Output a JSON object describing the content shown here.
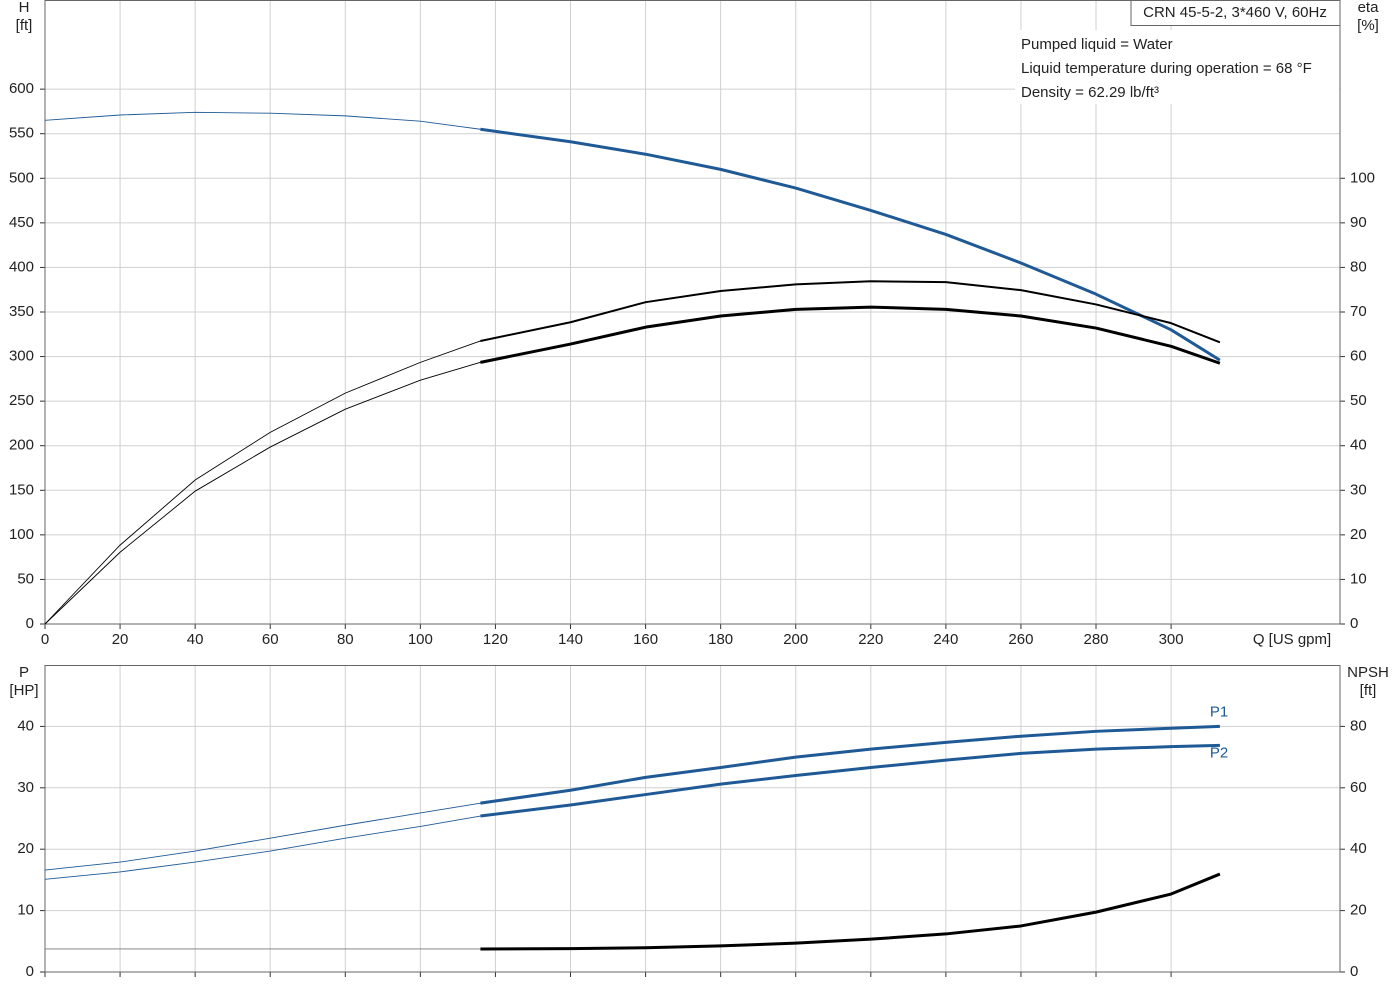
{
  "chart_data": [
    {
      "type": "line",
      "title": "CRN 45-5-2, 3*460 V, 60Hz",
      "annotations": [
        "Pumped liquid = Water",
        "Liquid temperature during operation = 68 °F",
        "Density = 62.29 lb/ft³"
      ],
      "y_label": [
        "H",
        "[ft]"
      ],
      "y2_label": [
        "eta",
        "[%]"
      ],
      "x_label": "Q [US gpm]",
      "x": [
        0,
        20,
        40,
        60,
        80,
        100,
        116,
        140,
        160,
        180,
        200,
        220,
        240,
        260,
        280,
        300,
        313
      ],
      "operating_range": [
        116,
        313
      ],
      "xlim": [
        0,
        345
      ],
      "xticks": [
        0,
        20,
        40,
        60,
        80,
        100,
        120,
        140,
        160,
        180,
        200,
        220,
        240,
        260,
        280,
        300
      ],
      "ylim": [
        0,
        700
      ],
      "yticks": [
        0,
        50,
        100,
        150,
        200,
        250,
        300,
        350,
        400,
        450,
        500,
        550,
        600
      ],
      "y2lim": [
        0,
        140
      ],
      "y2ticks": [
        0,
        10,
        20,
        30,
        40,
        50,
        60,
        70,
        80,
        90,
        100
      ],
      "grid": true,
      "series": [
        {
          "color": "#1f5a96",
          "values": [
            565,
            571,
            574,
            573,
            570,
            564,
            555,
            541,
            527,
            510,
            489,
            464,
            437,
            405,
            370,
            330,
            296
          ]
        },
        {
          "color": "#000000",
          "axis": "y2",
          "values": [
            0,
            17.7,
            32.3,
            43,
            51.8,
            58.7,
            63.5,
            67.7,
            72.2,
            74.7,
            76.2,
            76.9,
            76.7,
            74.9,
            71.7,
            67.5,
            63.2
          ]
        },
        {
          "color": "#000000",
          "axis": "y2",
          "values": [
            0,
            16.1,
            29.8,
            39.7,
            48.2,
            54.7,
            58.7,
            62.8,
            66.6,
            69.1,
            70.6,
            71.1,
            70.6,
            69.1,
            66.4,
            62.3,
            58.5
          ]
        }
      ]
    },
    {
      "type": "line",
      "y_label": [
        "P",
        "[HP]"
      ],
      "y2_label": [
        "NPSH",
        "[ft]"
      ],
      "x": [
        0,
        20,
        40,
        60,
        80,
        100,
        116,
        140,
        160,
        180,
        200,
        220,
        240,
        260,
        280,
        300,
        313
      ],
      "operating_range": [
        116,
        313
      ],
      "xlim": [
        0,
        345
      ],
      "ylim": [
        0,
        50
      ],
      "yticks": [
        0,
        10,
        20,
        30,
        40
      ],
      "y2lim": [
        0,
        100
      ],
      "y2ticks": [
        0,
        20,
        40,
        60,
        80
      ],
      "grid": true,
      "series": [
        {
          "name": "P1",
          "color": "#1f5a96",
          "values": [
            16.6,
            17.9,
            19.7,
            21.8,
            23.9,
            25.9,
            27.5,
            29.6,
            31.7,
            33.3,
            35.0,
            36.3,
            37.4,
            38.4,
            39.2,
            39.7,
            40.0
          ]
        },
        {
          "name": "P2",
          "color": "#1f5a96",
          "values": [
            15.1,
            16.3,
            17.9,
            19.7,
            21.8,
            23.7,
            25.4,
            27.2,
            28.9,
            30.6,
            32.0,
            33.3,
            34.5,
            35.6,
            36.3,
            36.7,
            36.9
          ]
        },
        {
          "color": "#000000",
          "axis": "y2",
          "values": [
            7.5,
            7.5,
            7.5,
            7.5,
            7.5,
            7.5,
            7.5,
            7.6,
            7.9,
            8.5,
            9.4,
            10.7,
            12.4,
            15.0,
            19.5,
            25.4,
            31.9
          ]
        }
      ]
    }
  ]
}
